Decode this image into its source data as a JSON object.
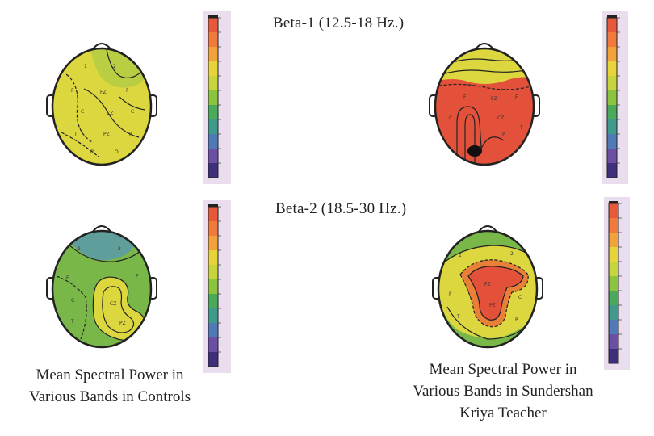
{
  "bands": {
    "beta1": "Beta-1 (12.5-18 Hz.)",
    "beta2": "Beta-2 (18.5-30 Hz.)"
  },
  "captions": {
    "controls_line1": "Mean Spectral Power in",
    "controls_line2": "Various Bands in Controls",
    "teacher_line1": "Mean Spectral Power in",
    "teacher_line2": "Various Bands in Sundershan",
    "teacher_line3": "Kriya Teacher"
  },
  "colors": {
    "scale": [
      "#e8583a",
      "#ef7a3c",
      "#f2a23a",
      "#e6d43a",
      "#c7d43e",
      "#8cc440",
      "#4aa95a",
      "#3f9a8c",
      "#4f7ab5",
      "#6a4fa2",
      "#3d2f7a"
    ],
    "yellow": "#dcd73e",
    "green": "#79b848",
    "teal": "#5f9e9a",
    "red": "#e4513a",
    "orange": "#ea8038",
    "dark": "#111111"
  }
}
